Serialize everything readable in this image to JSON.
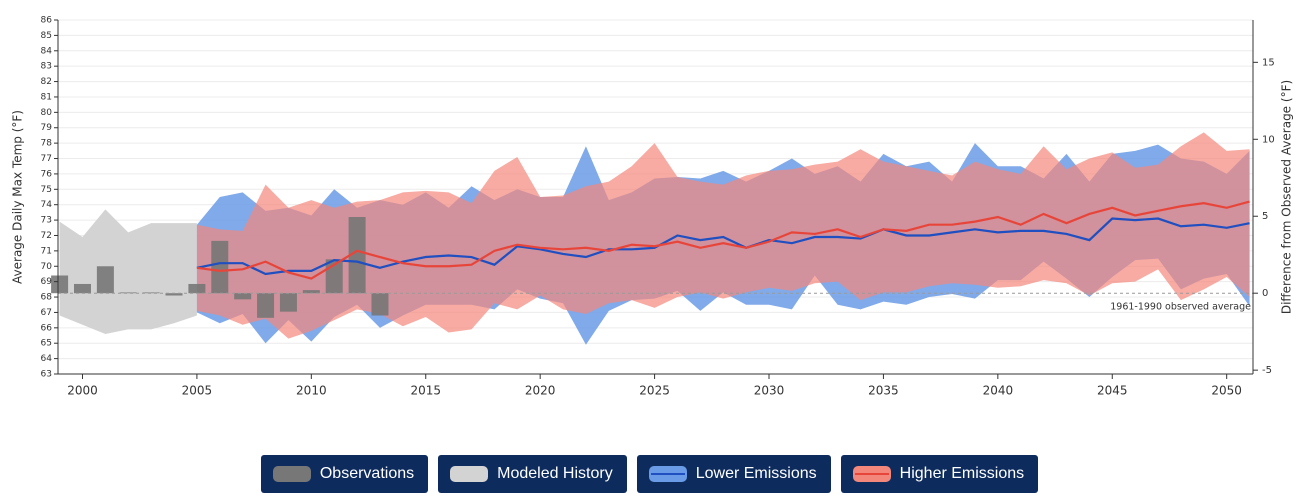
{
  "chart_data": {
    "type": "line",
    "ylabel": "Average Daily Max Temp (°F)",
    "y2label": "Difference from Observed Average (°F)",
    "annotation": "1961-1990 observed average",
    "xlim": [
      1998.93,
      2051.15
    ],
    "xticks": [
      2000,
      2005,
      2010,
      2015,
      2020,
      2025,
      2030,
      2035,
      2040,
      2045,
      2050
    ],
    "ylim": [
      63,
      86
    ],
    "yticks": [
      63,
      64,
      65,
      66,
      67,
      68,
      69,
      70,
      71,
      72,
      73,
      74,
      75,
      76,
      77,
      78,
      79,
      80,
      81,
      82,
      83,
      84,
      85,
      86
    ],
    "y2lim": [
      -5.25,
      17.75
    ],
    "y2ticks": [
      -5,
      0,
      5,
      10,
      15
    ],
    "grid": true,
    "legend": "bottom",
    "series": [
      {
        "name": "Observations",
        "type": "bar",
        "axis": "y2",
        "color": "#777777",
        "x": [
          1999,
          2000,
          2001,
          2002,
          2003,
          2004,
          2005,
          2006,
          2007,
          2008,
          2009,
          2010,
          2011,
          2012,
          2013
        ],
        "values": [
          1.15,
          0.6,
          1.75,
          0.05,
          0.05,
          -0.15,
          0.6,
          3.4,
          -0.4,
          -1.6,
          -1.2,
          0.2,
          2.2,
          4.95,
          -1.45
        ]
      },
      {
        "name": "Modeled History",
        "type": "area",
        "color": "#d3d3d3",
        "x": [
          1999,
          2000,
          2001,
          2002,
          2003,
          2004,
          2005
        ],
        "low": [
          66.8,
          66.2,
          65.6,
          65.9,
          65.9,
          66.3,
          66.8
        ],
        "high": [
          72.9,
          71.9,
          73.7,
          72.2,
          72.8,
          72.8,
          72.8
        ]
      },
      {
        "name": "Lower Emissions",
        "type": "line",
        "color": "#1f4fc0",
        "band_color": "#6a9be6",
        "x": [
          2005,
          2006,
          2007,
          2008,
          2009,
          2010,
          2011,
          2012,
          2013,
          2014,
          2015,
          2016,
          2017,
          2018,
          2019,
          2020,
          2021,
          2022,
          2023,
          2024,
          2025,
          2026,
          2027,
          2028,
          2029,
          2030,
          2031,
          2032,
          2033,
          2034,
          2035,
          2036,
          2037,
          2038,
          2039,
          2040,
          2041,
          2042,
          2043,
          2044,
          2045,
          2046,
          2047,
          2048,
          2049,
          2050,
          2051
        ],
        "values": [
          69.9,
          70.2,
          70.2,
          69.5,
          69.7,
          69.7,
          70.4,
          70.3,
          69.9,
          70.3,
          70.6,
          70.7,
          70.6,
          70.1,
          71.3,
          71.1,
          70.8,
          70.6,
          71.1,
          71.1,
          71.2,
          72.0,
          71.7,
          71.9,
          71.2,
          71.7,
          71.5,
          71.9,
          71.9,
          71.8,
          72.4,
          72.0,
          72.0,
          72.2,
          72.4,
          72.2,
          72.3,
          72.3,
          72.1,
          71.7,
          73.1,
          73.0,
          73.1,
          72.6,
          72.7,
          72.5,
          72.8
        ],
        "low": [
          67.0,
          66.3,
          66.9,
          65.0,
          66.5,
          65.1,
          66.7,
          67.5,
          66.0,
          66.8,
          67.5,
          67.5,
          67.5,
          67.2,
          68.5,
          67.9,
          67.6,
          64.9,
          67.1,
          67.8,
          67.9,
          68.4,
          67.1,
          68.3,
          67.5,
          67.5,
          67.2,
          69.4,
          67.5,
          67.2,
          67.7,
          67.5,
          68.0,
          68.2,
          67.9,
          69.1,
          69.1,
          70.3,
          69.2,
          68.0,
          69.3,
          70.4,
          70.5,
          68.5,
          69.2,
          69.5,
          67.4
        ],
        "high": [
          72.7,
          74.5,
          74.8,
          73.6,
          73.8,
          73.3,
          75.0,
          73.8,
          74.3,
          74.0,
          74.8,
          73.8,
          75.2,
          74.3,
          75.0,
          74.5,
          74.5,
          77.8,
          74.3,
          74.8,
          75.7,
          75.8,
          75.7,
          76.2,
          75.5,
          76.2,
          77.0,
          76.0,
          76.5,
          75.5,
          77.3,
          76.5,
          76.8,
          75.5,
          78.0,
          76.5,
          76.5,
          75.7,
          77.3,
          75.5,
          77.3,
          77.5,
          77.9,
          77.0,
          76.8,
          76.0,
          77.5
        ]
      },
      {
        "name": "Higher Emissions",
        "type": "line",
        "color": "#e8453a",
        "band_color": "#f3877c",
        "x": [
          2005,
          2006,
          2007,
          2008,
          2009,
          2010,
          2011,
          2012,
          2013,
          2014,
          2015,
          2016,
          2017,
          2018,
          2019,
          2020,
          2021,
          2022,
          2023,
          2024,
          2025,
          2026,
          2027,
          2028,
          2029,
          2030,
          2031,
          2032,
          2033,
          2034,
          2035,
          2036,
          2037,
          2038,
          2039,
          2040,
          2041,
          2042,
          2043,
          2044,
          2045,
          2046,
          2047,
          2048,
          2049,
          2050,
          2051
        ],
        "values": [
          69.9,
          69.7,
          69.8,
          70.3,
          69.6,
          69.2,
          70.1,
          71.0,
          70.6,
          70.2,
          70.0,
          70.0,
          70.1,
          71.0,
          71.4,
          71.2,
          71.1,
          71.2,
          71.0,
          71.4,
          71.3,
          71.6,
          71.2,
          71.5,
          71.2,
          71.6,
          72.2,
          72.1,
          72.4,
          71.9,
          72.4,
          72.3,
          72.7,
          72.7,
          72.9,
          73.2,
          72.7,
          73.4,
          72.8,
          73.4,
          73.8,
          73.3,
          73.6,
          73.9,
          74.1,
          73.8,
          74.2
        ],
        "low": [
          67.1,
          66.8,
          66.2,
          66.6,
          65.3,
          65.8,
          66.5,
          67.2,
          66.9,
          66.1,
          66.7,
          65.7,
          65.9,
          67.6,
          67.2,
          68.1,
          67.2,
          66.9,
          67.6,
          67.8,
          67.3,
          68.0,
          68.3,
          67.9,
          68.3,
          68.6,
          68.4,
          68.9,
          69.0,
          67.8,
          68.3,
          68.3,
          68.7,
          68.9,
          68.8,
          68.6,
          68.7,
          69.1,
          68.9,
          68.1,
          68.9,
          69.0,
          69.8,
          67.8,
          68.5,
          69.3,
          68.0
        ],
        "high": [
          72.7,
          72.4,
          72.3,
          75.3,
          73.8,
          74.3,
          73.8,
          74.2,
          74.3,
          74.8,
          74.9,
          74.8,
          74.1,
          76.2,
          77.1,
          74.5,
          74.6,
          75.2,
          75.5,
          76.5,
          78.0,
          75.8,
          75.5,
          75.3,
          75.9,
          76.2,
          76.3,
          76.6,
          76.8,
          77.6,
          76.8,
          76.5,
          76.2,
          75.9,
          76.8,
          76.3,
          76.0,
          77.8,
          76.3,
          77.0,
          77.4,
          76.4,
          76.6,
          77.8,
          78.7,
          77.5,
          77.6
        ]
      }
    ]
  }
}
